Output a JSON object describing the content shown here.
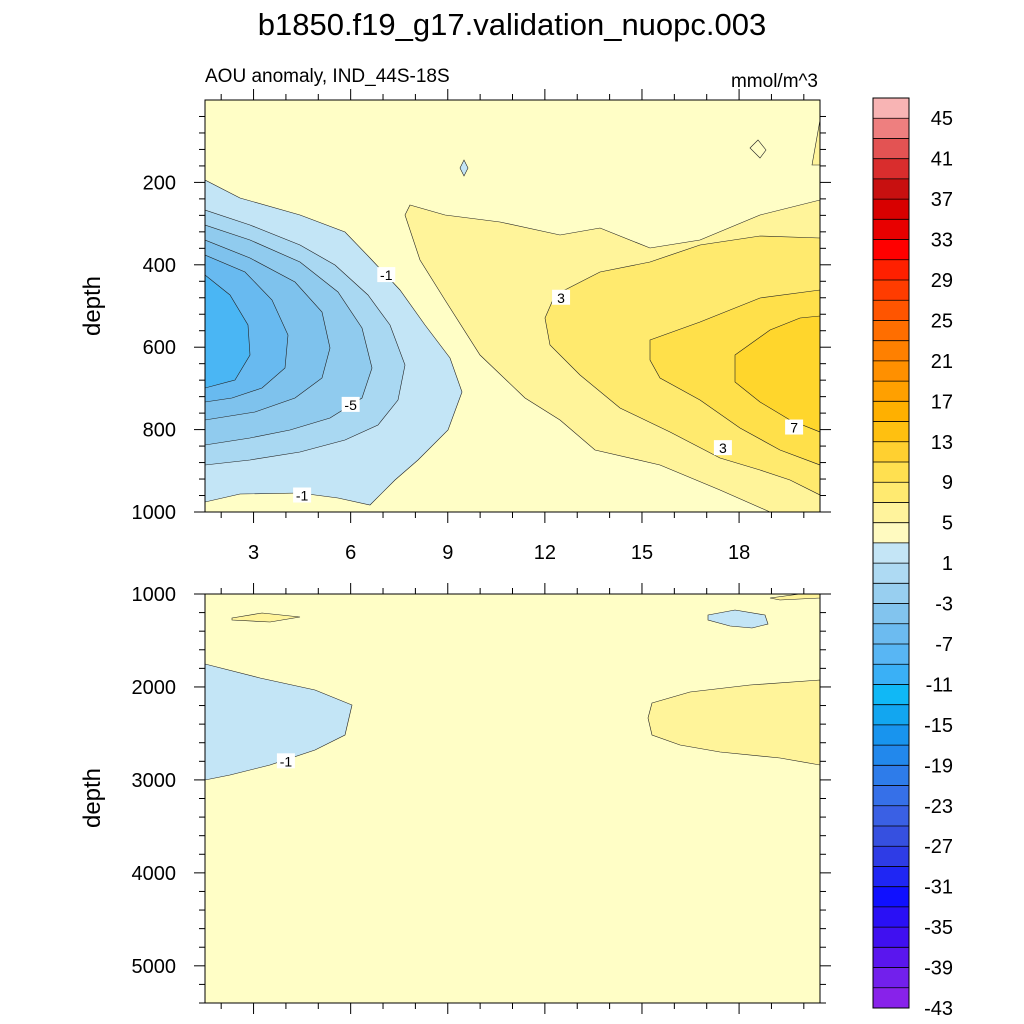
{
  "chart_data": {
    "type": "contour",
    "title": "b1850.f19_g17.validation_nuopc.003",
    "subtitle_left": "AOU anomaly, IND_44S-18S",
    "subtitle_right": "mmol/m^3",
    "x_ticks": [
      "3",
      "6",
      "9",
      "12",
      "15",
      "18"
    ],
    "x_values": [
      3,
      6,
      9,
      12,
      15,
      18
    ],
    "xlim": [
      1.5,
      20.5
    ],
    "panels": [
      {
        "name": "upper",
        "ylabel": "depth",
        "ylim": [
          0,
          1000
        ],
        "y_ticks": [
          "200",
          "400",
          "600",
          "800",
          "1000"
        ],
        "y_values": [
          200,
          400,
          600,
          800,
          1000
        ],
        "contour_labels": [
          {
            "text": "-1",
            "x": 7.1,
            "y": 425
          },
          {
            "text": "-5",
            "x": 6.0,
            "y": 740
          },
          {
            "text": "-1",
            "x": 4.5,
            "y": 960
          },
          {
            "text": "3",
            "x": 12.5,
            "y": 480
          },
          {
            "text": "3",
            "x": 17.5,
            "y": 845
          },
          {
            "text": "7",
            "x": 19.7,
            "y": 795
          }
        ]
      },
      {
        "name": "lower",
        "ylabel": "depth",
        "ylim": [
          1000,
          5400
        ],
        "y_ticks": [
          "1000",
          "2000",
          "3000",
          "4000",
          "5000"
        ],
        "y_values": [
          1000,
          2000,
          3000,
          4000,
          5000
        ],
        "contour_labels": [
          {
            "text": "-1",
            "x": 4.0,
            "y": 2800
          }
        ]
      }
    ],
    "colorbar": {
      "labels": [
        "45",
        "41",
        "37",
        "33",
        "29",
        "25",
        "21",
        "17",
        "13",
        "9",
        "5",
        "1",
        "-3",
        "-7",
        "-11",
        "-15",
        "-19",
        "-23",
        "-27",
        "-31",
        "-35",
        "-39",
        "-43"
      ],
      "colors": [
        "#f8b4b4",
        "#ee7f7f",
        "#e35353",
        "#d92d2d",
        "#c81010",
        "#d80000",
        "#e80000",
        "#ff0000",
        "#ff2000",
        "#ff3c00",
        "#ff5500",
        "#ff6e00",
        "#ff8000",
        "#ff9000",
        "#ffa000",
        "#ffb000",
        "#ffc010",
        "#ffd030",
        "#ffe050",
        "#ffea70",
        "#fff39c",
        "#fffac0",
        "#c4e5f6",
        "#aedaf3",
        "#98cff0",
        "#82c4ee",
        "#6cbbf0",
        "#58b6f4",
        "#3ab0f6",
        "#10b8f6",
        "#12a6f0",
        "#1894ee",
        "#2288ec",
        "#2e7cea",
        "#3670e8",
        "#3a60e4",
        "#3650e0",
        "#2e3ce6",
        "#1f26f4",
        "#1010ff",
        "#2a10f5",
        "#4010f0",
        "#5a16ee",
        "#7220ec",
        "#8822ea"
      ]
    }
  }
}
